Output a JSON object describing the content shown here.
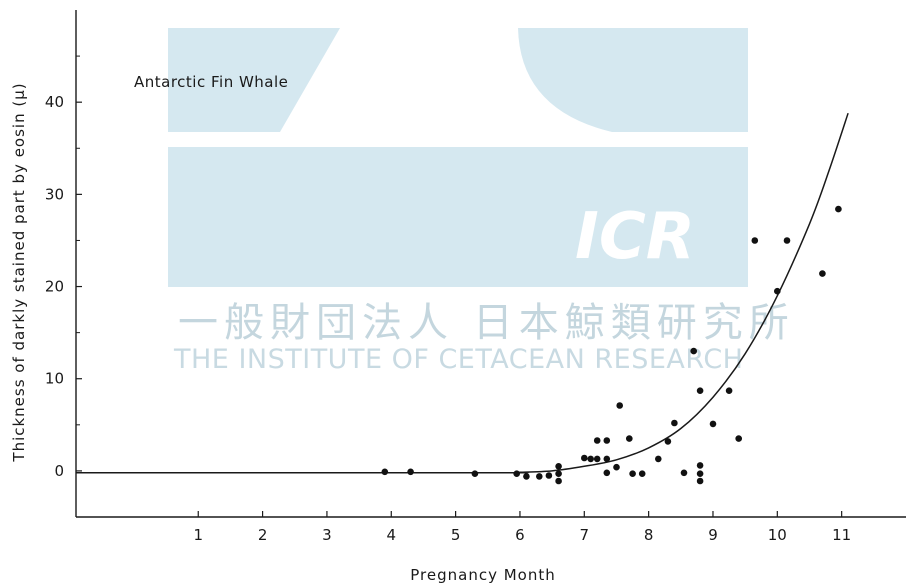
{
  "watermark": {
    "logo_text": "ICR",
    "japanese_name": "一般財団法人 日本鯨類研究所",
    "english_name": "THE INSTITUTE OF CETACEAN RESEARCH",
    "color": "#d5e8f0"
  },
  "chart_data": {
    "type": "scatter",
    "title": "",
    "annotation": "Antarctic Fin Whale",
    "xlabel": "Pregnancy Month",
    "ylabel": "Thickness of darkly stained part by eosin (μ)",
    "xlim": [
      -0.9,
      12.0
    ],
    "ylim": [
      -5,
      50
    ],
    "xticks": [
      1,
      2,
      3,
      4,
      5,
      6,
      7,
      8,
      9,
      10,
      11
    ],
    "yticks": [
      0,
      10,
      20,
      30,
      40
    ],
    "points": [
      {
        "x": 3.9,
        "y": -0.1
      },
      {
        "x": 4.3,
        "y": -0.1
      },
      {
        "x": 5.3,
        "y": -0.3
      },
      {
        "x": 5.95,
        "y": -0.3
      },
      {
        "x": 6.1,
        "y": -0.6
      },
      {
        "x": 6.3,
        "y": -0.6
      },
      {
        "x": 6.45,
        "y": -0.5
      },
      {
        "x": 6.6,
        "y": 0.5
      },
      {
        "x": 6.6,
        "y": -0.3
      },
      {
        "x": 6.6,
        "y": -1.1
      },
      {
        "x": 7.0,
        "y": 1.4
      },
      {
        "x": 7.1,
        "y": 1.3
      },
      {
        "x": 7.2,
        "y": 1.3
      },
      {
        "x": 7.2,
        "y": 3.3
      },
      {
        "x": 7.35,
        "y": 3.3
      },
      {
        "x": 7.35,
        "y": 1.3
      },
      {
        "x": 7.35,
        "y": -0.2
      },
      {
        "x": 7.5,
        "y": 0.4
      },
      {
        "x": 7.55,
        "y": 7.1
      },
      {
        "x": 7.7,
        "y": 3.5
      },
      {
        "x": 7.75,
        "y": -0.3
      },
      {
        "x": 7.9,
        "y": -0.3
      },
      {
        "x": 8.15,
        "y": 1.3
      },
      {
        "x": 8.3,
        "y": 3.2
      },
      {
        "x": 8.4,
        "y": 5.2
      },
      {
        "x": 8.55,
        "y": -0.2
      },
      {
        "x": 8.7,
        "y": 13.0
      },
      {
        "x": 8.8,
        "y": 8.7
      },
      {
        "x": 8.8,
        "y": 0.6
      },
      {
        "x": 8.8,
        "y": -0.3
      },
      {
        "x": 8.8,
        "y": -1.1
      },
      {
        "x": 9.0,
        "y": 5.1
      },
      {
        "x": 9.25,
        "y": 8.7
      },
      {
        "x": 9.4,
        "y": 3.5
      },
      {
        "x": 9.65,
        "y": 25.0
      },
      {
        "x": 10.0,
        "y": 19.5
      },
      {
        "x": 10.15,
        "y": 25.0
      },
      {
        "x": 10.7,
        "y": 21.4
      },
      {
        "x": 10.95,
        "y": 28.4
      }
    ],
    "curve": [
      {
        "x": -0.9,
        "y": -0.2
      },
      {
        "x": 5.5,
        "y": -0.2
      },
      {
        "x": 6.0,
        "y": -0.15
      },
      {
        "x": 6.5,
        "y": 0.0
      },
      {
        "x": 7.0,
        "y": 0.5
      },
      {
        "x": 7.5,
        "y": 1.2
      },
      {
        "x": 8.0,
        "y": 2.5
      },
      {
        "x": 8.5,
        "y": 4.6
      },
      {
        "x": 9.0,
        "y": 8.0
      },
      {
        "x": 9.5,
        "y": 12.7
      },
      {
        "x": 10.0,
        "y": 19.0
      },
      {
        "x": 10.5,
        "y": 26.8
      },
      {
        "x": 10.8,
        "y": 32.5
      },
      {
        "x": 11.1,
        "y": 38.8
      }
    ],
    "grid": false,
    "legend": "none"
  }
}
